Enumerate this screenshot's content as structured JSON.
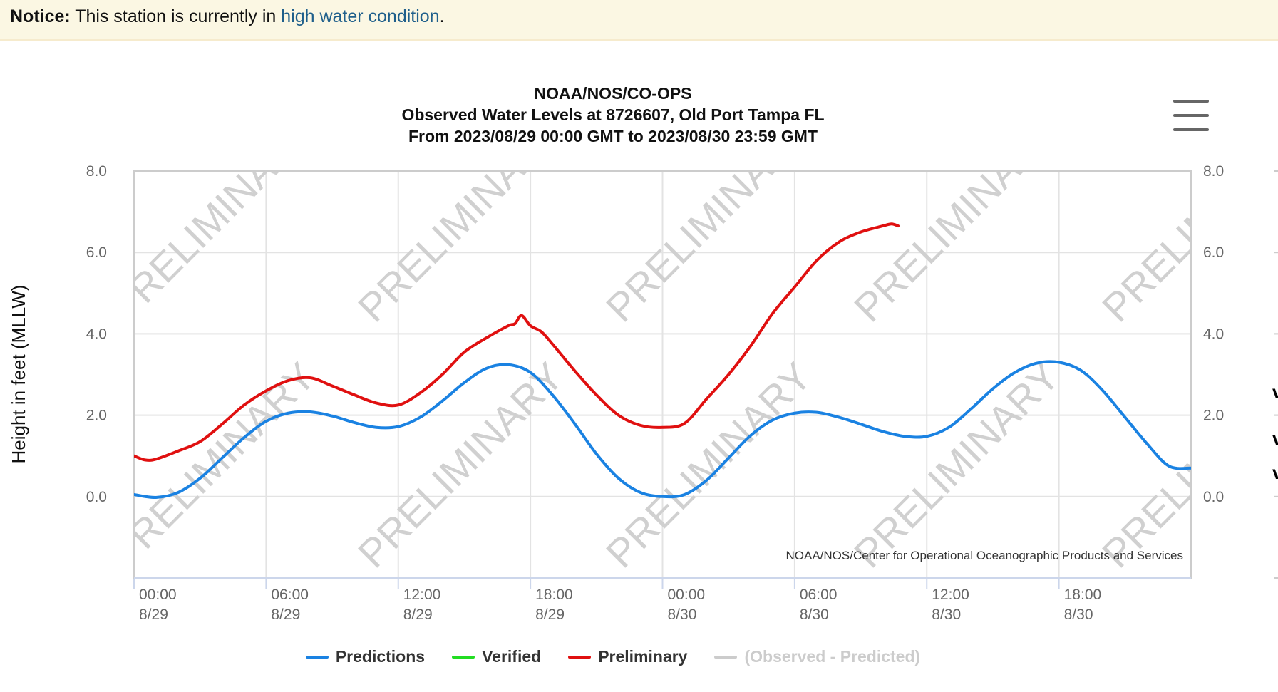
{
  "notice": {
    "label": "Notice:",
    "text": "This station is currently in",
    "link_text": "high water condition",
    "suffix": "."
  },
  "chart_menu": {
    "icon": "hamburger-menu-icon"
  },
  "chart_data": {
    "type": "line",
    "title": "NOAA/NOS/CO-OPS",
    "subtitle": "Observed Water Levels at 8726607, Old Port Tampa FL",
    "subtitle2": "From 2023/08/29 00:00 GMT to 2023/08/30 23:59 GMT",
    "xlabel": "",
    "ylabel": "Height in feet (MLLW)",
    "ylim": [
      -2.0,
      8.0
    ],
    "xlim_hours": [
      0,
      48
    ],
    "y_ticks": [
      "8.0",
      "6.0",
      "4.0",
      "2.0",
      "0.0"
    ],
    "y_tick_values": [
      8,
      6,
      4,
      2,
      0
    ],
    "x_ticks": [
      {
        "time": "00:00",
        "date": "8/29",
        "hour": 0
      },
      {
        "time": "06:00",
        "date": "8/29",
        "hour": 6
      },
      {
        "time": "12:00",
        "date": "8/29",
        "hour": 12
      },
      {
        "time": "18:00",
        "date": "8/29",
        "hour": 18
      },
      {
        "time": "00:00",
        "date": "8/30",
        "hour": 24
      },
      {
        "time": "06:00",
        "date": "8/30",
        "hour": 30
      },
      {
        "time": "12:00",
        "date": "8/30",
        "hour": 36
      },
      {
        "time": "18:00",
        "date": "8/30",
        "hour": 42
      }
    ],
    "grid": true,
    "watermark": "PRELIMINARY",
    "credit": "NOAA/NOS/Center for Operational Oceanographic Products and Services",
    "legend_position": "bottom",
    "series": [
      {
        "name": "Predictions",
        "color": "#1a82e2",
        "visible": true,
        "x_hours": [
          0,
          1,
          2,
          3,
          4,
          5,
          6,
          7,
          8,
          9,
          10,
          11,
          12,
          13,
          14,
          15,
          16,
          17,
          18,
          19,
          20,
          21,
          22,
          23,
          24,
          25,
          26,
          27,
          28,
          29,
          30,
          31,
          32,
          33,
          34,
          35,
          36,
          37,
          38,
          39,
          40,
          41,
          42,
          43,
          44,
          45,
          46,
          47,
          48
        ],
        "values": [
          0.05,
          -0.02,
          0.1,
          0.45,
          0.95,
          1.45,
          1.85,
          2.05,
          2.08,
          1.98,
          1.82,
          1.7,
          1.72,
          1.95,
          2.35,
          2.8,
          3.15,
          3.24,
          3.05,
          2.5,
          1.8,
          1.05,
          0.45,
          0.1,
          0.0,
          0.05,
          0.4,
          0.95,
          1.5,
          1.88,
          2.05,
          2.07,
          1.95,
          1.78,
          1.6,
          1.48,
          1.48,
          1.7,
          2.15,
          2.65,
          3.05,
          3.28,
          3.3,
          3.1,
          2.6,
          1.95,
          1.3,
          0.75,
          0.7
        ],
        "note": "series ends at about 47.8 hours, ~0.75 ft"
      },
      {
        "name": "Verified",
        "color": "#22dd22",
        "visible": true,
        "x_hours": [],
        "values": []
      },
      {
        "name": "Preliminary",
        "color": "#e01010",
        "visible": true,
        "x_hours": [
          0,
          0.5,
          1,
          2,
          3,
          4,
          5,
          6,
          7,
          8,
          9,
          10,
          11,
          12,
          13,
          14,
          15,
          16,
          17,
          17.3,
          17.6,
          18,
          18.5,
          19,
          20,
          21,
          22,
          23,
          24,
          25,
          26,
          27,
          28,
          29,
          30,
          31,
          32,
          33,
          34,
          34.4,
          34.7
        ],
        "values": [
          1.0,
          0.9,
          0.92,
          1.12,
          1.35,
          1.78,
          2.25,
          2.6,
          2.85,
          2.92,
          2.72,
          2.5,
          2.3,
          2.25,
          2.55,
          3.0,
          3.55,
          3.9,
          4.2,
          4.25,
          4.45,
          4.2,
          4.05,
          3.75,
          3.1,
          2.5,
          2.0,
          1.75,
          1.7,
          1.8,
          2.4,
          3.0,
          3.7,
          4.5,
          5.15,
          5.8,
          6.25,
          6.5,
          6.65,
          6.7,
          6.65
        ]
      },
      {
        "name": "(Observed - Predicted)",
        "color": "#cccccc",
        "visible": false,
        "x_hours": [],
        "values": []
      }
    ]
  }
}
